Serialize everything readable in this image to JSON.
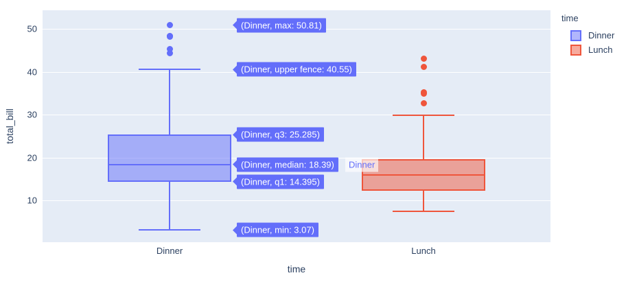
{
  "figure": {
    "background": "#ffffff",
    "plot_background": "#E5ECF6",
    "grid_color": "#ffffff",
    "text_color": "#2a3f5f"
  },
  "chart_data": {
    "type": "box",
    "title": "",
    "xlabel": "time",
    "ylabel": "total_bill",
    "x_ticklabels": [
      "Dinner",
      "Lunch"
    ],
    "y_ticks": [
      10,
      20,
      30,
      40,
      50
    ],
    "ylim": [
      0.24,
      54.32
    ],
    "grid": true,
    "legend": {
      "title": "time",
      "position": "top-right"
    },
    "series": [
      {
        "name": "Dinner",
        "color": "#636EFA",
        "stats": {
          "min": 3.07,
          "q1": 14.395,
          "median": 18.39,
          "q3": 25.285,
          "upper_fence": 40.55,
          "max": 50.81
        },
        "outliers": [
          44.3,
          45.35,
          48.17,
          48.27,
          48.33,
          50.81
        ]
      },
      {
        "name": "Lunch",
        "color": "#EF553B",
        "stats": {
          "min": 7.51,
          "q1": 12.24,
          "median": 15.97,
          "q3": 19.53,
          "upper_fence": 29.8,
          "max": 43.11
        },
        "outliers": [
          32.68,
          34.83,
          35.25,
          41.19,
          43.11
        ]
      }
    ],
    "hover_labels": {
      "series": "Dinner",
      "name_label": "Dinner",
      "items": [
        {
          "stat": "max",
          "label": "(Dinner, max: 50.81)",
          "value": 50.81
        },
        {
          "stat": "upper fence",
          "label": "(Dinner, upper fence: 40.55)",
          "value": 40.55
        },
        {
          "stat": "q3",
          "label": "(Dinner, q3: 25.285)",
          "value": 25.285
        },
        {
          "stat": "median",
          "label": "(Dinner, median: 18.39)",
          "value": 18.39
        },
        {
          "stat": "q1",
          "label": "(Dinner, q1: 14.395)",
          "value": 14.395
        },
        {
          "stat": "min",
          "label": "(Dinner, min: 3.07)",
          "value": 3.07
        }
      ]
    }
  }
}
